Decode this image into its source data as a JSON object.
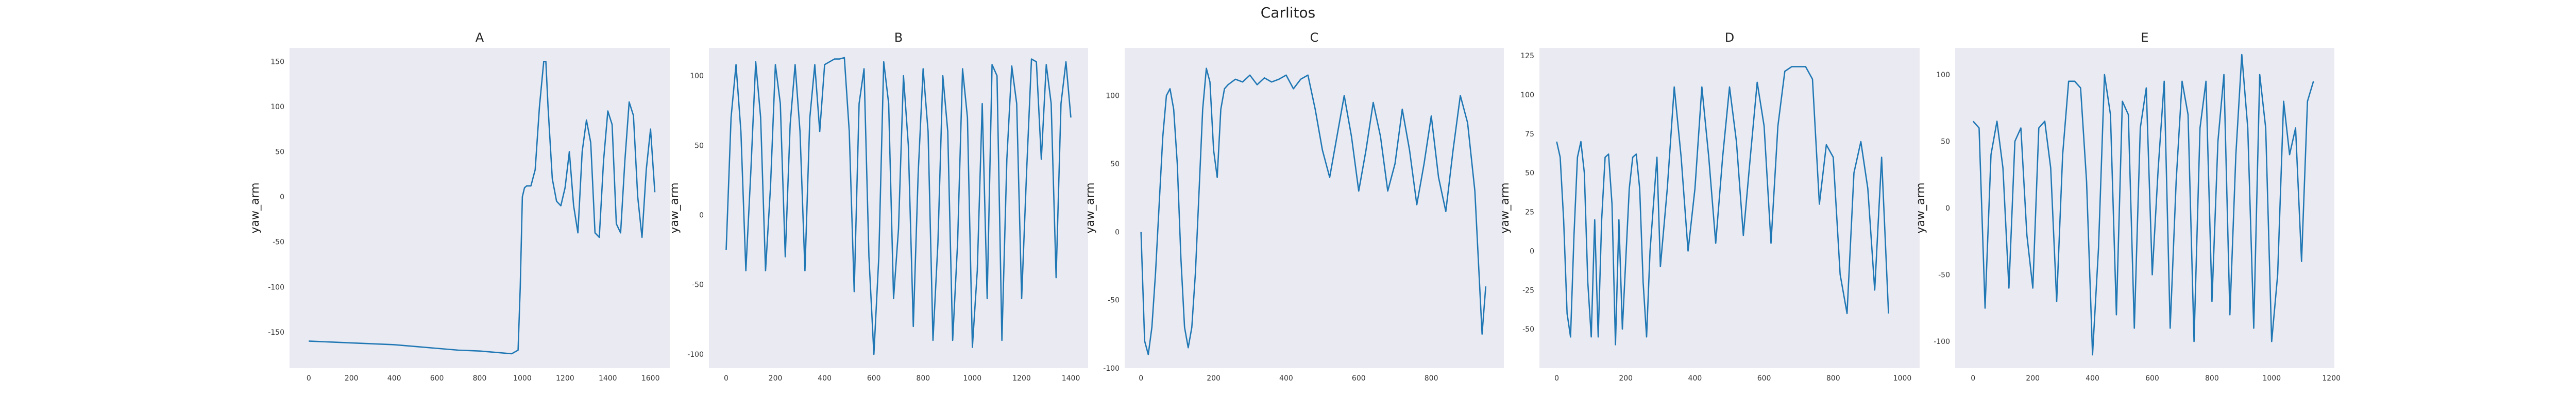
{
  "figure": {
    "suptitle": "Carlitos",
    "plot_bg": "#eaeaf2",
    "line_color": "#1f77b4"
  },
  "chart_data": [
    {
      "type": "line",
      "title": "A",
      "xlabel": "",
      "ylabel": "yaw_arm",
      "grid": false,
      "xlim": [
        -90,
        1690
      ],
      "ylim": [
        -190,
        165
      ],
      "xticks": [
        0,
        200,
        400,
        600,
        800,
        1000,
        1200,
        1400,
        1600
      ],
      "yticks": [
        -150,
        -100,
        -50,
        0,
        50,
        100,
        150
      ],
      "x": [
        0,
        100,
        200,
        300,
        400,
        500,
        600,
        700,
        800,
        900,
        950,
        980,
        990,
        1000,
        1010,
        1020,
        1040,
        1060,
        1080,
        1100,
        1110,
        1120,
        1140,
        1160,
        1180,
        1200,
        1220,
        1240,
        1260,
        1280,
        1300,
        1320,
        1340,
        1360,
        1380,
        1400,
        1420,
        1440,
        1460,
        1480,
        1500,
        1520,
        1540,
        1560,
        1580,
        1600,
        1620
      ],
      "y": [
        -160,
        -161,
        -162,
        -163,
        -164,
        -166,
        -168,
        -170,
        -171,
        -173,
        -174,
        -170,
        -100,
        0,
        10,
        12,
        12,
        30,
        100,
        150,
        150,
        100,
        20,
        -5,
        -10,
        10,
        50,
        -10,
        -40,
        50,
        85,
        60,
        -40,
        -45,
        40,
        95,
        80,
        -30,
        -40,
        40,
        105,
        90,
        0,
        -45,
        30,
        75,
        5
      ]
    },
    {
      "type": "line",
      "title": "B",
      "xlabel": "",
      "ylabel": "yaw_arm",
      "grid": false,
      "xlim": [
        -70,
        1470
      ],
      "ylim": [
        -110,
        120
      ],
      "xticks": [
        0,
        200,
        400,
        600,
        800,
        1000,
        1200,
        1400
      ],
      "yticks": [
        -100,
        -50,
        0,
        50,
        100
      ],
      "x": [
        0,
        20,
        40,
        60,
        80,
        100,
        120,
        140,
        160,
        180,
        200,
        220,
        240,
        260,
        280,
        300,
        320,
        340,
        360,
        380,
        400,
        420,
        440,
        460,
        480,
        500,
        520,
        540,
        560,
        580,
        600,
        620,
        640,
        660,
        680,
        700,
        720,
        740,
        760,
        780,
        800,
        820,
        840,
        860,
        880,
        900,
        920,
        940,
        960,
        980,
        1000,
        1020,
        1040,
        1060,
        1080,
        1100,
        1120,
        1140,
        1160,
        1180,
        1200,
        1220,
        1240,
        1260,
        1280,
        1300,
        1320,
        1340,
        1360,
        1380,
        1400
      ],
      "y": [
        -25,
        70,
        108,
        60,
        -40,
        30,
        110,
        70,
        -40,
        20,
        108,
        80,
        -30,
        65,
        108,
        60,
        -40,
        70,
        108,
        60,
        108,
        110,
        112,
        112,
        113,
        60,
        -55,
        80,
        105,
        -30,
        -100,
        -30,
        110,
        80,
        -60,
        -10,
        100,
        50,
        -80,
        30,
        105,
        60,
        -90,
        -20,
        100,
        60,
        -90,
        -20,
        105,
        70,
        -95,
        -40,
        80,
        -60,
        108,
        100,
        -90,
        40,
        107,
        80,
        -60,
        30,
        112,
        110,
        40,
        108,
        80,
        -45,
        80,
        110,
        70
      ]
    },
    {
      "type": "line",
      "title": "C",
      "xlabel": "",
      "ylabel": "yaw_arm",
      "grid": false,
      "xlim": [
        -45,
        1000
      ],
      "ylim": [
        -100,
        135
      ],
      "xticks": [
        0,
        200,
        400,
        600,
        800
      ],
      "yticks": [
        -100,
        -50,
        0,
        50,
        100
      ],
      "x": [
        0,
        10,
        20,
        30,
        40,
        50,
        60,
        70,
        80,
        90,
        100,
        110,
        120,
        130,
        140,
        150,
        160,
        170,
        180,
        190,
        200,
        210,
        220,
        230,
        240,
        260,
        280,
        300,
        320,
        340,
        360,
        380,
        400,
        420,
        440,
        460,
        480,
        500,
        520,
        540,
        560,
        580,
        600,
        620,
        640,
        660,
        680,
        700,
        720,
        740,
        760,
        780,
        800,
        820,
        840,
        860,
        880,
        900,
        920,
        940,
        950
      ],
      "y": [
        0,
        -80,
        -90,
        -70,
        -30,
        20,
        70,
        100,
        105,
        90,
        50,
        -20,
        -70,
        -85,
        -70,
        -30,
        30,
        90,
        120,
        110,
        60,
        40,
        90,
        105,
        108,
        112,
        110,
        115,
        108,
        113,
        110,
        112,
        115,
        105,
        112,
        115,
        90,
        60,
        40,
        70,
        100,
        70,
        30,
        60,
        95,
        70,
        30,
        50,
        90,
        60,
        20,
        50,
        85,
        40,
        15,
        60,
        100,
        80,
        30,
        -75,
        -40
      ]
    },
    {
      "type": "line",
      "title": "D",
      "xlabel": "",
      "ylabel": "yaw_arm",
      "grid": false,
      "xlim": [
        -50,
        1050
      ],
      "ylim": [
        -75,
        130
      ],
      "xticks": [
        0,
        200,
        400,
        600,
        800,
        1000
      ],
      "yticks": [
        -50,
        -25,
        0,
        25,
        50,
        75,
        100,
        125
      ],
      "x": [
        0,
        10,
        20,
        30,
        40,
        50,
        60,
        70,
        80,
        90,
        100,
        110,
        120,
        130,
        140,
        150,
        160,
        170,
        180,
        190,
        200,
        210,
        220,
        230,
        240,
        250,
        260,
        270,
        280,
        290,
        300,
        320,
        340,
        360,
        380,
        400,
        420,
        440,
        460,
        480,
        500,
        520,
        540,
        560,
        580,
        600,
        620,
        640,
        660,
        680,
        700,
        720,
        740,
        760,
        780,
        800,
        820,
        840,
        860,
        880,
        900,
        920,
        940,
        960
      ],
      "y": [
        70,
        60,
        20,
        -40,
        -55,
        10,
        60,
        70,
        50,
        -20,
        -55,
        20,
        -55,
        20,
        60,
        62,
        30,
        -60,
        20,
        -50,
        -5,
        40,
        60,
        62,
        40,
        -20,
        -55,
        0,
        30,
        60,
        -10,
        40,
        105,
        60,
        0,
        40,
        105,
        60,
        5,
        60,
        105,
        70,
        10,
        60,
        108,
        80,
        5,
        80,
        115,
        118,
        118,
        118,
        110,
        30,
        68,
        60,
        -15,
        -40,
        50,
        70,
        40,
        -25,
        60,
        -40
      ]
    },
    {
      "type": "line",
      "title": "E",
      "xlabel": "",
      "ylabel": "yaw_arm",
      "grid": false,
      "xlim": [
        -60,
        1210
      ],
      "ylim": [
        -120,
        120
      ],
      "xticks": [
        0,
        200,
        400,
        600,
        800,
        1000,
        1200
      ],
      "yticks": [
        -100,
        -50,
        0,
        50,
        100
      ],
      "x": [
        0,
        20,
        40,
        60,
        80,
        100,
        120,
        140,
        160,
        180,
        200,
        220,
        240,
        260,
        280,
        300,
        320,
        340,
        360,
        380,
        400,
        420,
        440,
        460,
        480,
        500,
        520,
        540,
        560,
        580,
        600,
        620,
        640,
        660,
        680,
        700,
        720,
        740,
        760,
        780,
        800,
        820,
        840,
        860,
        880,
        900,
        920,
        940,
        960,
        980,
        1000,
        1020,
        1040,
        1060,
        1080,
        1100,
        1120,
        1140
      ],
      "y": [
        65,
        60,
        -75,
        40,
        65,
        30,
        -60,
        50,
        60,
        -20,
        -60,
        60,
        65,
        30,
        -70,
        40,
        95,
        95,
        90,
        20,
        -110,
        -30,
        100,
        70,
        -80,
        80,
        70,
        -90,
        60,
        90,
        -50,
        30,
        95,
        -90,
        20,
        95,
        70,
        -100,
        60,
        95,
        -70,
        50,
        100,
        -80,
        40,
        115,
        60,
        -90,
        100,
        60,
        -100,
        -50,
        80,
        40,
        60,
        -40,
        80,
        95
      ]
    }
  ]
}
